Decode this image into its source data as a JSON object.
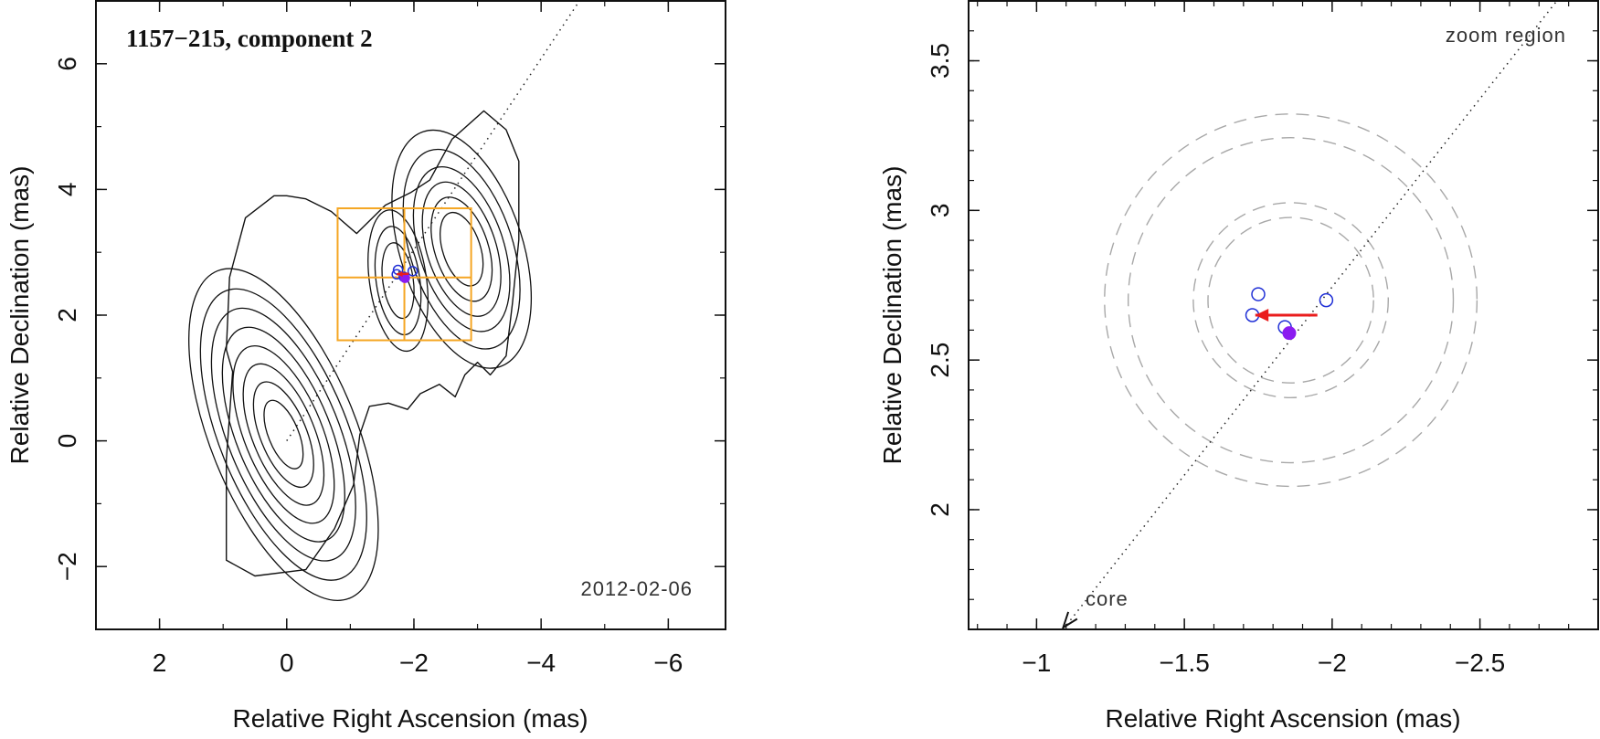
{
  "chart_data": [
    {
      "type": "scatter",
      "title": "1157−215, component 2",
      "xlabel": "Relative Right Ascension (mas)",
      "ylabel": "Relative Declination (mas)",
      "xlim": [
        3,
        -6.9
      ],
      "ylim": [
        -3,
        7
      ],
      "xticks": [
        2,
        0,
        -2,
        -4,
        -6
      ],
      "xtick_labels": [
        "2",
        "0",
        "−2",
        "−4",
        "−6"
      ],
      "yticks": [
        -2,
        0,
        2,
        4,
        6
      ],
      "ytick_labels": [
        "−2",
        "0",
        "2",
        "4",
        "6"
      ],
      "date_label": "2012-02-06",
      "jet_axis": {
        "x1": 0,
        "y1": 0,
        "x2": -4.8,
        "y2": 7.3
      },
      "contour_sources": [
        {
          "x": 0.05,
          "y": 0.1,
          "sx": 0.58,
          "sy": 1.4,
          "rotation_deg": -22,
          "levels": [
            0.14,
            0.22,
            0.32,
            0.44,
            0.57,
            0.7,
            0.82,
            0.92
          ]
        },
        {
          "x": -2.75,
          "y": 3.05,
          "sx": 0.52,
          "sy": 1.05,
          "rotation_deg": -18,
          "levels": [
            0.18,
            0.3,
            0.44,
            0.58,
            0.72,
            0.85
          ]
        },
        {
          "x": -1.75,
          "y": 2.55,
          "sx": 0.34,
          "sy": 0.85,
          "rotation_deg": -8,
          "levels": [
            0.42,
            0.6,
            0.78
          ]
        }
      ],
      "outer_contour": [
        [
          0.95,
          -1.9
        ],
        [
          0.5,
          -2.15
        ],
        [
          -0.3,
          -2.05
        ],
        [
          -0.75,
          -1.4
        ],
        [
          -1.05,
          -0.7
        ],
        [
          -1.15,
          0.1
        ],
        [
          -1.3,
          0.55
        ],
        [
          -1.6,
          0.6
        ],
        [
          -1.9,
          0.5
        ],
        [
          -2.1,
          0.75
        ],
        [
          -2.4,
          0.9
        ],
        [
          -2.65,
          0.7
        ],
        [
          -2.8,
          1.05
        ],
        [
          -3.0,
          1.25
        ],
        [
          -3.2,
          1.05
        ],
        [
          -3.45,
          1.35
        ],
        [
          -3.55,
          2.2
        ],
        [
          -3.65,
          3.2
        ],
        [
          -3.65,
          4.45
        ],
        [
          -3.45,
          4.95
        ],
        [
          -3.1,
          5.25
        ],
        [
          -2.6,
          4.8
        ],
        [
          -2.25,
          4.15
        ],
        [
          -1.95,
          3.95
        ],
        [
          -1.55,
          3.75
        ],
        [
          -1.1,
          3.3
        ],
        [
          -0.7,
          3.65
        ],
        [
          -0.3,
          3.85
        ],
        [
          0.0,
          3.9
        ],
        [
          0.2,
          3.9
        ],
        [
          0.65,
          3.55
        ],
        [
          0.9,
          2.6
        ],
        [
          0.95,
          1.45
        ],
        [
          0.85,
          1.1
        ],
        [
          0.9,
          0.4
        ],
        [
          0.95,
          -0.3
        ],
        [
          0.95,
          -1.9
        ]
      ],
      "zoom_box": {
        "x1": -0.8,
        "x2": -2.9,
        "y1": 1.6,
        "y2": 3.7,
        "xmid": -1.85,
        "ymid": 2.6
      },
      "points_open": [
        {
          "x": -1.75,
          "y": 2.72
        },
        {
          "x": -1.73,
          "y": 2.65
        },
        {
          "x": -1.98,
          "y": 2.7
        },
        {
          "x": -1.84,
          "y": 2.61
        }
      ],
      "points_filled": [
        {
          "x": -1.86,
          "y": 2.59
        }
      ],
      "vector": {
        "x1": -1.92,
        "y1": 2.66,
        "x2": -1.73,
        "y2": 2.65
      },
      "colors": {
        "contour": "#111111",
        "zoom_box": "#f5a623",
        "open_point": "#1f2fd6",
        "filled_point": "#8b1cf0",
        "vector": "#ea1d1d"
      }
    },
    {
      "type": "scatter",
      "title": "zoom region",
      "xlabel": "Relative Right Ascension (mas)",
      "ylabel": "Relative Declination (mas)",
      "xlim": [
        -0.77,
        -2.9
      ],
      "ylim": [
        1.6,
        3.7
      ],
      "xticks": [
        -1,
        -1.5,
        -2,
        -2.5
      ],
      "xtick_labels": [
        "−1",
        "−1.5",
        "−2",
        "−2.5"
      ],
      "yticks": [
        2,
        2.5,
        3,
        3.5
      ],
      "ytick_labels": [
        "2",
        "2.5",
        "3",
        "3.5"
      ],
      "core_label": "core",
      "jet_axis": {
        "x1": -1.09,
        "y1": 1.6,
        "x2": -2.76,
        "y2": 3.7
      },
      "dashed_circles": [
        {
          "x": -1.86,
          "y": 2.7,
          "r": 0.28
        },
        {
          "x": -1.86,
          "y": 2.7,
          "r": 0.33
        },
        {
          "x": -1.86,
          "y": 2.7,
          "r": 0.63
        },
        {
          "x": -1.86,
          "y": 2.7,
          "r": 0.55
        }
      ],
      "points_open": [
        {
          "x": -1.75,
          "y": 2.72
        },
        {
          "x": -1.73,
          "y": 2.65
        },
        {
          "x": -1.98,
          "y": 2.7
        },
        {
          "x": -1.84,
          "y": 2.61
        }
      ],
      "points_filled": [
        {
          "x": -1.855,
          "y": 2.59
        }
      ],
      "vector": {
        "x1": -1.95,
        "y1": 2.65,
        "x2": -1.74,
        "y2": 2.65
      },
      "colors": {
        "circle": "#a8a8a8",
        "open_point": "#1f2fd6",
        "filled_point": "#8b1cf0",
        "vector": "#ea1d1d"
      }
    }
  ]
}
